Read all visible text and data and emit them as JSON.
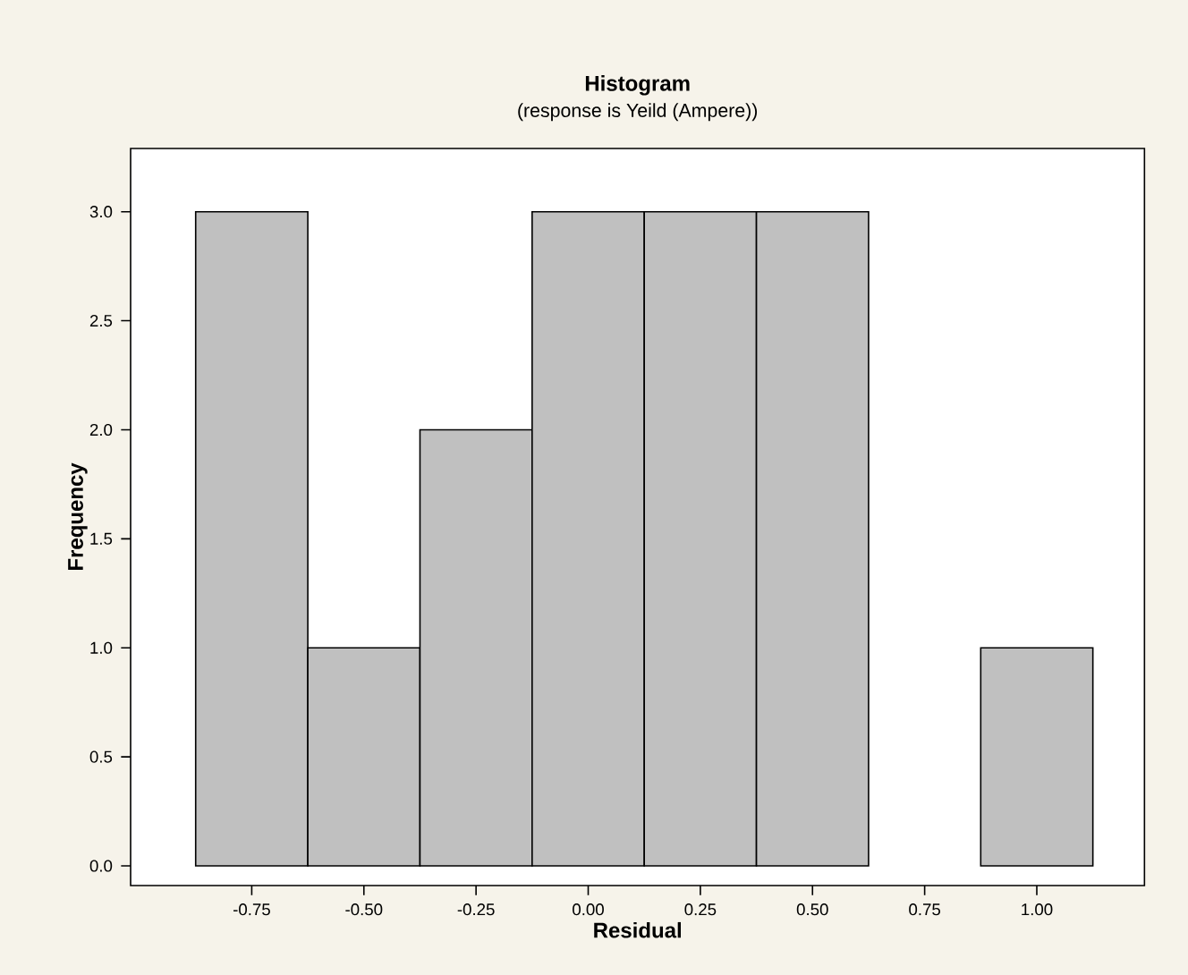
{
  "chart_data": {
    "type": "histogram",
    "title": "Histogram",
    "subtitle": "(response is Yeild (Ampere))",
    "xlabel": "Residual",
    "ylabel": "Frequency",
    "bins": [
      -0.875,
      -0.625,
      -0.375,
      -0.125,
      0.125,
      0.375,
      0.625,
      0.875,
      1.125
    ],
    "values": [
      3,
      1,
      2,
      3,
      3,
      3,
      0,
      1
    ],
    "color": "#c0c0c0",
    "xlim": [
      -1.02,
      1.24
    ],
    "ylim": [
      -0.09,
      3.29
    ],
    "xticks": [
      {
        "value": -0.75,
        "label": "-0.75"
      },
      {
        "value": -0.5,
        "label": "-0.50"
      },
      {
        "value": -0.25,
        "label": "-0.25"
      },
      {
        "value": 0,
        "label": "0.00"
      },
      {
        "value": 0.25,
        "label": "0.25"
      },
      {
        "value": 0.5,
        "label": "0.50"
      },
      {
        "value": 0.75,
        "label": "0.75"
      },
      {
        "value": 1,
        "label": "1.00"
      }
    ],
    "yticks": [
      {
        "value": 0,
        "label": "0.0"
      },
      {
        "value": 0.5,
        "label": "0.5"
      },
      {
        "value": 1,
        "label": "1.0"
      },
      {
        "value": 1.5,
        "label": "1.5"
      },
      {
        "value": 2,
        "label": "2.0"
      },
      {
        "value": 2.5,
        "label": "2.5"
      },
      {
        "value": 3,
        "label": "3.0"
      }
    ]
  }
}
